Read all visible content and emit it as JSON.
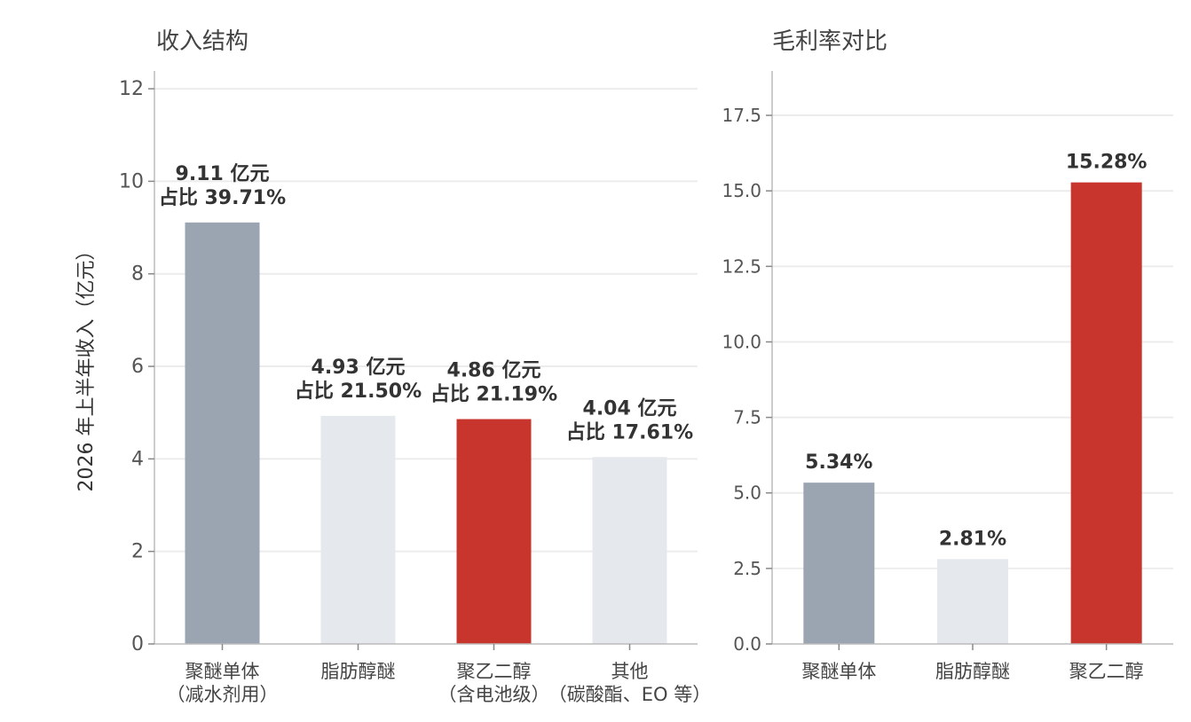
{
  "chart_data": [
    {
      "type": "bar",
      "title": "收入结构",
      "ylabel": "2026 年上半年收入（亿元）",
      "ylim": [
        0,
        12.5
      ],
      "yticks": [
        "0",
        "2",
        "4",
        "6",
        "8",
        "10",
        "12"
      ],
      "grid": true,
      "categories": [
        [
          "聚醚单体",
          "（减水剂用）"
        ],
        [
          "脂肪醇醚"
        ],
        [
          "聚乙二醇",
          "（含电池级）"
        ],
        [
          "其他",
          "（碳酸酯、EO 等）"
        ]
      ],
      "values": [
        9.11,
        4.93,
        4.86,
        4.04
      ],
      "bar_colors": [
        "#9aa5b1",
        "#e5e8ec",
        "#c8352c",
        "#e5e8ec"
      ],
      "data_labels": [
        [
          "9.11 亿元",
          "占比 39.71%"
        ],
        [
          "4.93 亿元",
          "占比 21.50%"
        ],
        [
          "4.86 亿元",
          "占比 21.19%"
        ],
        [
          "4.04 亿元",
          "占比 17.61%"
        ]
      ]
    },
    {
      "type": "bar",
      "title": "毛利率对比",
      "ylim": [
        0,
        18.5
      ],
      "yticks": [
        "0.0",
        "2.5",
        "5.0",
        "7.5",
        "10.0",
        "12.5",
        "15.0",
        "17.5"
      ],
      "grid": true,
      "categories": [
        [
          "聚醚单体"
        ],
        [
          "脂肪醇醚"
        ],
        [
          "聚乙二醇"
        ]
      ],
      "values": [
        5.34,
        2.81,
        15.28
      ],
      "bar_colors": [
        "#9aa5b1",
        "#e5e8ec",
        "#c8352c"
      ],
      "data_labels": [
        "5.34%",
        "2.81%",
        "15.28%"
      ]
    }
  ]
}
